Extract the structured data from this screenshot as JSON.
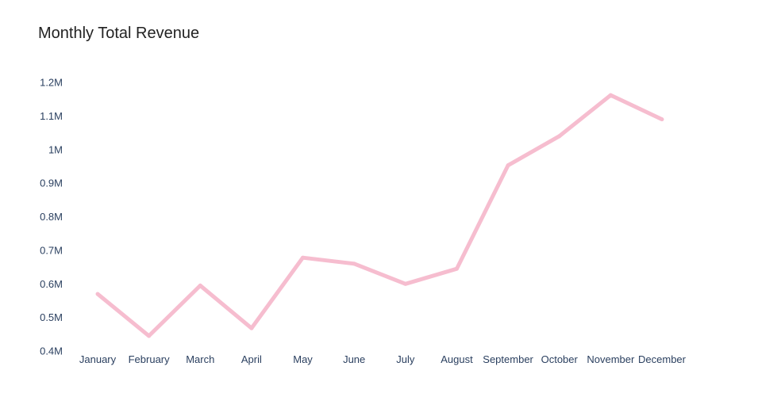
{
  "chart_data": {
    "type": "line",
    "title": "Monthly Total Revenue",
    "xlabel": "",
    "ylabel": "",
    "categories": [
      "January",
      "February",
      "March",
      "April",
      "May",
      "June",
      "July",
      "August",
      "September",
      "October",
      "November",
      "December"
    ],
    "series": [
      {
        "name": "Total Revenue",
        "color": "#f6bdcf",
        "values": [
          570000,
          445000,
          595000,
          468000,
          678000,
          660000,
          600000,
          645000,
          953000,
          1040000,
          1162000,
          1090000
        ]
      }
    ],
    "ylim": [
      0.4,
      1.2
    ],
    "y_ticks": [
      {
        "value": 0.4,
        "label": "0.4M"
      },
      {
        "value": 0.5,
        "label": "0.5M"
      },
      {
        "value": 0.6,
        "label": "0.6M"
      },
      {
        "value": 0.7,
        "label": "0.7M"
      },
      {
        "value": 0.8,
        "label": "0.8M"
      },
      {
        "value": 0.9,
        "label": "0.9M"
      },
      {
        "value": 1.0,
        "label": "1M"
      },
      {
        "value": 1.1,
        "label": "1.1M"
      },
      {
        "value": 1.2,
        "label": "1.2M"
      }
    ],
    "grid": false,
    "legend": "none"
  }
}
